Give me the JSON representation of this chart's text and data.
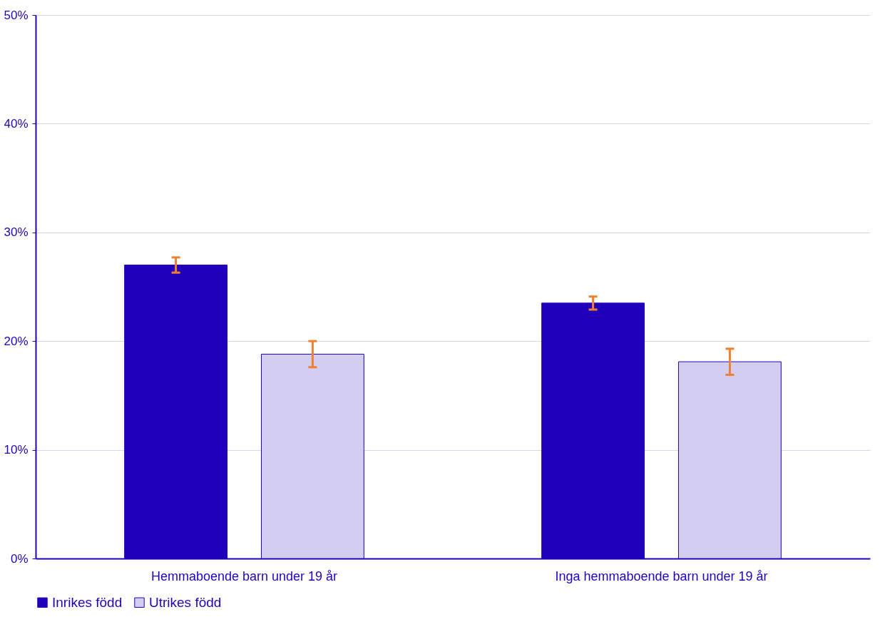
{
  "chart_data": {
    "type": "bar",
    "categories": [
      "Hemmaboende barn under 19 år",
      "Inga hemmaboende barn under 19 år"
    ],
    "series": [
      {
        "name": "Inrikes född",
        "color": "#2200bb",
        "values": [
          27.0,
          23.5
        ],
        "errors": [
          0.7,
          0.6
        ]
      },
      {
        "name": "Utrikes född",
        "color": "#d3cdf0",
        "values": [
          18.8,
          18.1
        ],
        "errors": [
          1.2,
          1.2
        ]
      }
    ],
    "ylim": [
      0,
      50
    ],
    "yticks": [
      {
        "value": 0,
        "label": "0%"
      },
      {
        "value": 10,
        "label": "10%"
      },
      {
        "value": 20,
        "label": "20%"
      },
      {
        "value": 30,
        "label": "30%"
      },
      {
        "value": 40,
        "label": "40%"
      },
      {
        "value": 50,
        "label": "50%"
      }
    ],
    "grid": "y",
    "legend": "bottom"
  }
}
